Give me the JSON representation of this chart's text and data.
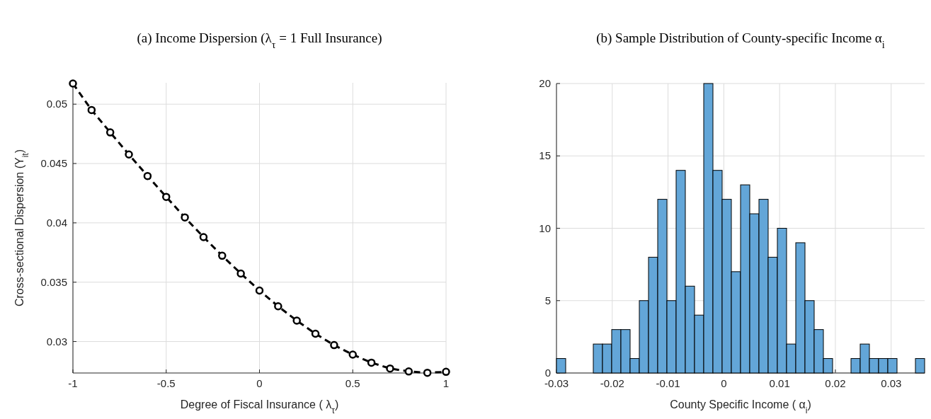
{
  "chart_data": [
    {
      "type": "line",
      "title": "(a) Income Dispersion (λ$_{τ}$ = 1 Full Insurance)",
      "xlabel": "Degree of Fiscal Insurance ( λ$_{τ}$)",
      "ylabel": "Cross-sectional Dispersion (Y$_{it}$)",
      "x": [
        -1,
        -0.9,
        -0.8,
        -0.7,
        -0.6,
        -0.5,
        -0.4,
        -0.3,
        -0.2,
        -0.1,
        0,
        0.1,
        0.2,
        0.3,
        0.4,
        0.5,
        0.6,
        0.7,
        0.8,
        0.9,
        1
      ],
      "series": [
        {
          "color": "#000000",
          "values": [
            0.05174,
            0.04951,
            0.04762,
            0.04576,
            0.04395,
            0.04219,
            0.04046,
            0.0388,
            0.03723,
            0.03573,
            0.0343,
            0.03297,
            0.03176,
            0.03066,
            0.0297,
            0.0289,
            0.02822,
            0.02773,
            0.02748,
            0.02737,
            0.02745
          ]
        }
      ],
      "xlim": [
        -1,
        1
      ],
      "ylim": [
        0.02735,
        0.0518
      ],
      "xticks": [
        -1,
        -0.5,
        0,
        0.5,
        1
      ],
      "yticks": [
        0.03,
        0.035,
        0.04,
        0.045,
        0.05
      ],
      "grid": true,
      "marker": "circle",
      "line_style": "dashed"
    },
    {
      "type": "histogram",
      "title": "(b) Sample Distribution of County-specific Income α$_{i}$",
      "xlabel": "County Specific Income ( α$_{i}$)",
      "bins": [
        -0.03,
        -0.02835,
        -0.0267,
        -0.02505,
        -0.0234,
        -0.02175,
        -0.0201,
        -0.01845,
        -0.0168,
        -0.01515,
        -0.0135,
        -0.01185,
        -0.0102,
        -0.00855,
        -0.0069,
        -0.00525,
        -0.0036,
        -0.00195,
        -0.0003,
        0.00135,
        0.003,
        0.00465,
        0.0063,
        0.00795,
        0.0096,
        0.01125,
        0.0129,
        0.01455,
        0.0162,
        0.01785,
        0.0195,
        0.02115,
        0.0228,
        0.02445,
        0.0261,
        0.02775,
        0.0294,
        0.03105,
        0.0327,
        0.03435,
        0.036
      ],
      "values": [
        1,
        0,
        0,
        0,
        2,
        2,
        3,
        3,
        1,
        5,
        8,
        12,
        5,
        14,
        6,
        4,
        20,
        14,
        12,
        7,
        13,
        11,
        12,
        8,
        10,
        2,
        9,
        5,
        3,
        1,
        0,
        0,
        1,
        2,
        1,
        1,
        1,
        0,
        0,
        1
      ],
      "color": "#63a6d8",
      "xlim": [
        -0.03,
        0.036
      ],
      "ylim": [
        0,
        20
      ],
      "xticks": [
        -0.03,
        -0.02,
        -0.01,
        0,
        0.01,
        0.02,
        0.03
      ],
      "yticks": [
        0,
        5,
        10,
        15,
        20
      ],
      "grid": true
    }
  ]
}
